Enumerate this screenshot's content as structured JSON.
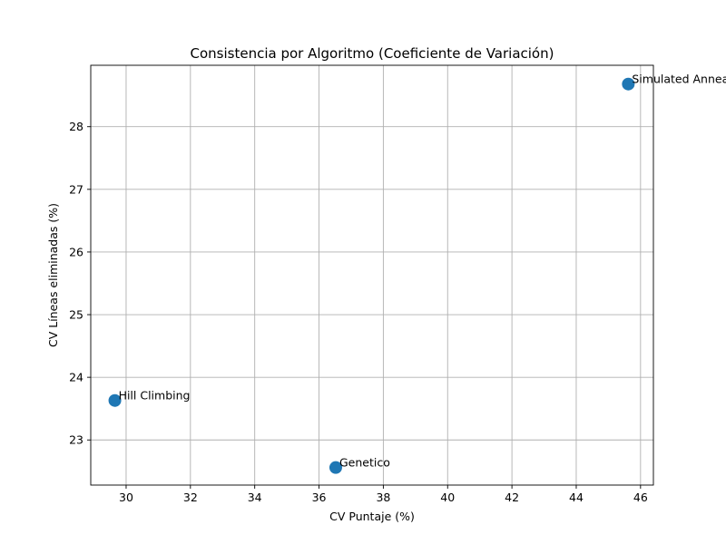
{
  "chart_data": {
    "type": "scatter",
    "title": "Consistencia por Algoritmo (Coeficiente de Variación)",
    "xlabel": "CV Puntaje (%)",
    "ylabel": "CV Líneas eliminadas (%)",
    "xlim": [
      28.9,
      46.4
    ],
    "ylim": [
      22.28,
      28.98
    ],
    "xticks": [
      30,
      32,
      34,
      36,
      38,
      40,
      42,
      44,
      46
    ],
    "yticks": [
      23,
      24,
      25,
      26,
      27,
      28
    ],
    "grid": true,
    "color": "#1f77b4",
    "points": [
      {
        "label": "Hill Climbing",
        "x": 29.65,
        "y": 23.63
      },
      {
        "label": "Genetico",
        "x": 36.52,
        "y": 22.56
      },
      {
        "label": "Simulated Annealing",
        "x": 45.62,
        "y": 28.68
      }
    ]
  }
}
